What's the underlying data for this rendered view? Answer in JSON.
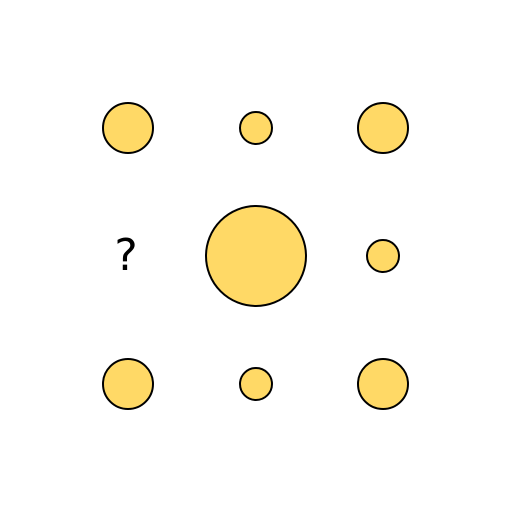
{
  "puzzle": {
    "colors": {
      "circle_fill": "#FFD966",
      "circle_stroke": "#000000"
    },
    "grid": [
      [
        {
          "type": "circle",
          "size": "medium"
        },
        {
          "type": "circle",
          "size": "small"
        },
        {
          "type": "circle",
          "size": "medium"
        }
      ],
      [
        {
          "type": "unknown",
          "label": "?"
        },
        {
          "type": "circle",
          "size": "large"
        },
        {
          "type": "circle",
          "size": "small"
        }
      ],
      [
        {
          "type": "circle",
          "size": "medium"
        },
        {
          "type": "circle",
          "size": "small"
        },
        {
          "type": "circle",
          "size": "medium"
        }
      ]
    ]
  }
}
